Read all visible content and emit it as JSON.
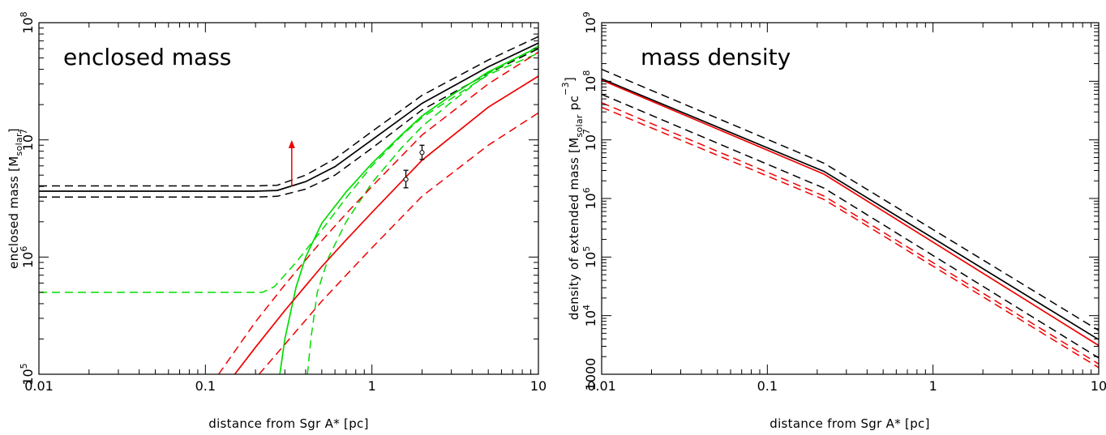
{
  "chart_data": [
    {
      "type": "line",
      "title": "enclosed mass",
      "xlabel": "distance from Sgr A* [pc]",
      "ylabel": "enclosed mass [M_solar]",
      "ylabel_parts": [
        "enclosed mass [M",
        "solar",
        "]"
      ],
      "xscale": "log",
      "yscale": "log",
      "xlim": [
        0.01,
        10
      ],
      "ylim": [
        100000,
        100000000
      ],
      "xticklabels": [
        {
          "value": 0.01,
          "label": "0.01"
        },
        {
          "value": 0.1,
          "label": "0.1"
        },
        {
          "value": 1,
          "label": "1"
        },
        {
          "value": 10,
          "label": "10"
        }
      ],
      "yticklabels": [
        {
          "value": 100000,
          "base": "10",
          "exp": "5"
        },
        {
          "value": 1000000,
          "base": "10",
          "exp": "6"
        },
        {
          "value": 10000000,
          "base": "10",
          "exp": "7"
        },
        {
          "value": 100000000,
          "base": "10",
          "exp": "8"
        }
      ],
      "series": [
        {
          "color": "#000000",
          "dash": "solid",
          "x": [
            0.01,
            0.1,
            0.2,
            0.27,
            0.4,
            0.6,
            1,
            2,
            5,
            10
          ],
          "y": [
            3650000,
            3650000,
            3650000,
            3700000,
            4400000,
            5900000,
            10000000,
            20500000,
            42000000,
            67000000
          ]
        },
        {
          "color": "#000000",
          "dash": "dashed",
          "x": [
            0.01,
            0.1,
            0.2,
            0.27,
            0.4,
            0.6,
            1,
            2,
            5,
            10
          ],
          "y": [
            4050000,
            4050000,
            4050000,
            4100000,
            5000000,
            6900000,
            11800000,
            24000000,
            48000000,
            76000000
          ]
        },
        {
          "color": "#000000",
          "dash": "dashed",
          "x": [
            0.01,
            0.1,
            0.2,
            0.27,
            0.4,
            0.6,
            1,
            2,
            5,
            10
          ],
          "y": [
            3250000,
            3250000,
            3250000,
            3300000,
            3800000,
            5000000,
            8500000,
            18000000,
            37000000,
            60000000
          ]
        },
        {
          "color": "#00dd00",
          "dash": "solid",
          "x": [
            0.28,
            0.3,
            0.35,
            0.4,
            0.5,
            0.7,
            1,
            1.5,
            2,
            3,
            5,
            10
          ],
          "y": [
            100000,
            200000,
            550000,
            1000000,
            1950000,
            3600000,
            6300000,
            11000000,
            16000000,
            24000000,
            38000000,
            62000000
          ]
        },
        {
          "color": "#00dd00",
          "dash": "dashed",
          "x": [
            0.01,
            0.1,
            0.22,
            0.26,
            0.35,
            0.5,
            0.7,
            1,
            1.5,
            2,
            5,
            10
          ],
          "y": [
            500000,
            500000,
            500000,
            560000,
            900000,
            1700000,
            3200000,
            6000000,
            10800000,
            15500000,
            36000000,
            55000000
          ]
        },
        {
          "color": "#00dd00",
          "dash": "dashed",
          "x": [
            0.41,
            0.43,
            0.47,
            0.55,
            0.7,
            1,
            1.5,
            2,
            3,
            5,
            10
          ],
          "y": [
            100000,
            200000,
            500000,
            1000000,
            2000000,
            4300000,
            8500000,
            13000000,
            21000000,
            37000000,
            63000000
          ]
        },
        {
          "color": "#ee0000",
          "dash": "solid",
          "x": [
            0.15,
            0.2,
            0.3,
            0.5,
            0.7,
            1,
            2,
            5,
            10
          ],
          "y": [
            100000,
            170000,
            350000,
            830000,
            1400000,
            2400000,
            6700000,
            19000000,
            35000000
          ]
        },
        {
          "color": "#ee0000",
          "dash": "dashed",
          "x": [
            0.12,
            0.2,
            0.3,
            0.5,
            0.7,
            1,
            2,
            5,
            10
          ],
          "y": [
            100000,
            280000,
            580000,
            1380000,
            2350000,
            4000000,
            11000000,
            30000000,
            56000000
          ]
        },
        {
          "color": "#ee0000",
          "dash": "dashed",
          "x": [
            0.21,
            0.3,
            0.5,
            0.7,
            1,
            2,
            5,
            10
          ],
          "y": [
            100000,
            180000,
            420000,
            700000,
            1200000,
            3300000,
            9000000,
            17000000
          ]
        }
      ],
      "data_points": [
        {
          "x": 1.6,
          "y": 4600000,
          "ylow": 3900000,
          "yhigh": 5500000
        },
        {
          "x": 2.0,
          "y": 7800000,
          "ylow": 6800000,
          "yhigh": 9000000
        }
      ],
      "annotation_arrow": {
        "color": "#ee0000",
        "x": 0.33,
        "y_from": 4000000,
        "y_to": 9500000
      }
    },
    {
      "type": "line",
      "title": "mass density",
      "xlabel": "distance from Sgr A* [pc]",
      "ylabel": "density of extended mass [M_solar pc^-3]",
      "ylabel_parts": [
        "density of extended mass [M",
        "solar",
        " pc",
        "−3",
        "]"
      ],
      "xscale": "log",
      "yscale": "log",
      "xlim": [
        0.01,
        10
      ],
      "ylim": [
        1000,
        1000000000
      ],
      "xticklabels": [
        {
          "value": 0.01,
          "label": "0.01"
        },
        {
          "value": 0.1,
          "label": "0.1"
        },
        {
          "value": 1,
          "label": "1"
        },
        {
          "value": 10,
          "label": "10"
        }
      ],
      "yticklabels": [
        {
          "value": 1000,
          "base": "1000",
          "exp": ""
        },
        {
          "value": 10000,
          "base": "10",
          "exp": "4"
        },
        {
          "value": 100000,
          "base": "10",
          "exp": "5"
        },
        {
          "value": 1000000,
          "base": "10",
          "exp": "6"
        },
        {
          "value": 10000000,
          "base": "10",
          "exp": "7"
        },
        {
          "value": 100000000,
          "base": "10",
          "exp": "8"
        },
        {
          "value": 1000000000,
          "base": "10",
          "exp": "9"
        }
      ],
      "series": [
        {
          "color": "#000000",
          "dash": "solid",
          "x": [
            0.01,
            0.22,
            10
          ],
          "y": [
            110000000,
            2900000,
            3900
          ]
        },
        {
          "color": "#000000",
          "dash": "dashed",
          "x": [
            0.01,
            0.22,
            10
          ],
          "y": [
            160000000,
            4000000,
            5600
          ]
        },
        {
          "color": "#000000",
          "dash": "dashed",
          "x": [
            0.01,
            0.22,
            10
          ],
          "y": [
            60000000,
            1500000,
            1900
          ]
        },
        {
          "color": "#ee0000",
          "dash": "solid",
          "x": [
            0.01,
            0.22,
            10
          ],
          "y": [
            105000000,
            2600000,
            3100
          ]
        },
        {
          "color": "#ee0000",
          "dash": "dashed",
          "x": [
            0.01,
            0.22,
            10
          ],
          "y": [
            36000000,
            960000,
            1300
          ]
        },
        {
          "color": "#ee0000",
          "dash": "dashed",
          "x": [
            0.01,
            0.22,
            10
          ],
          "y": [
            43000000,
            1100000,
            1500
          ]
        }
      ]
    }
  ]
}
